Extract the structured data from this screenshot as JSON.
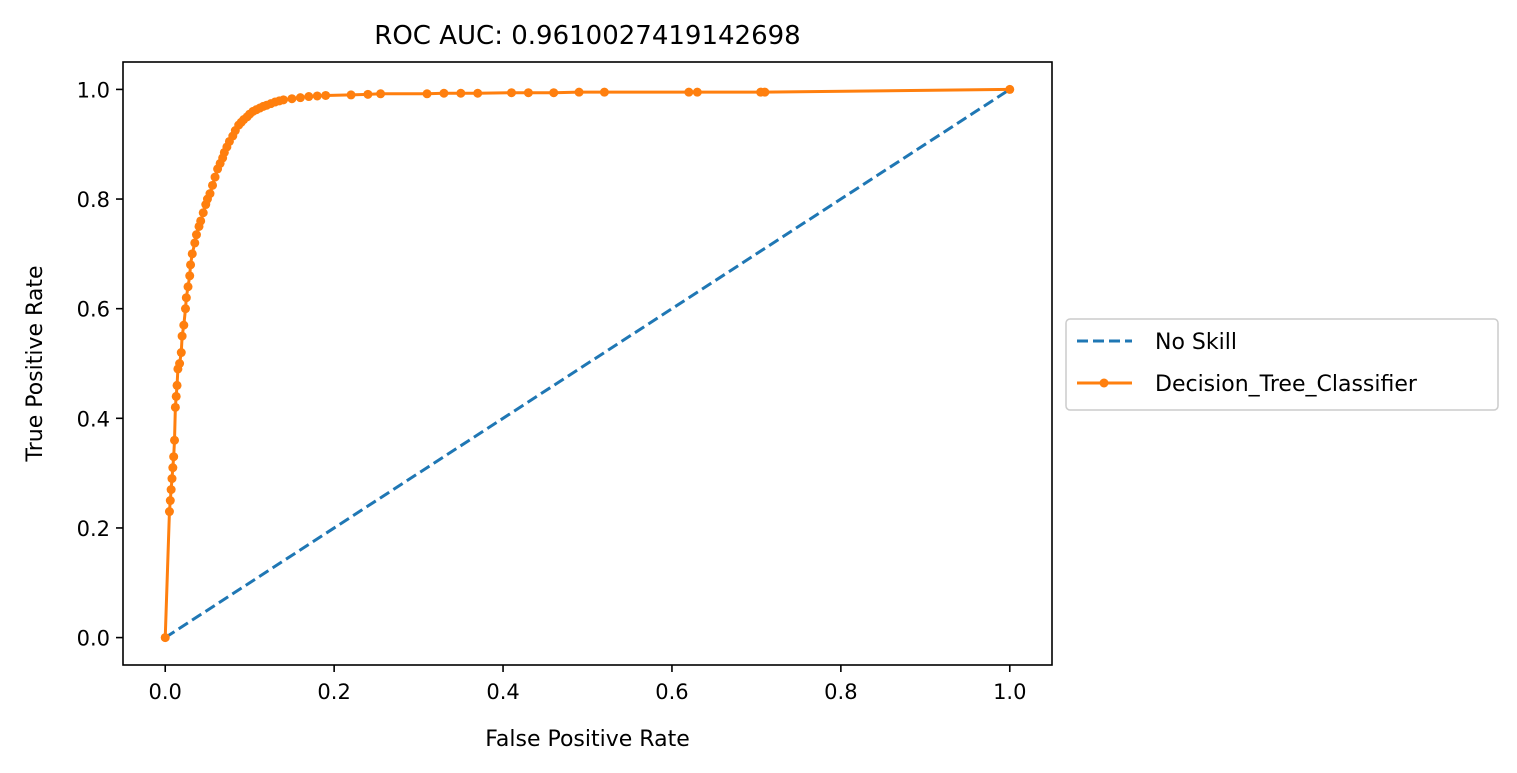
{
  "chart_data": {
    "type": "line",
    "title": "ROC AUC: 0.9610027419142698",
    "xlabel": "False Positive Rate",
    "ylabel": "True Positive Rate",
    "xlim": [
      -0.05,
      1.05
    ],
    "ylim": [
      -0.05,
      1.05
    ],
    "xticks": [
      "0.0",
      "0.2",
      "0.4",
      "0.6",
      "0.8",
      "1.0"
    ],
    "yticks": [
      "0.0",
      "0.2",
      "0.4",
      "0.6",
      "0.8",
      "1.0"
    ],
    "legend_position": "outside-right",
    "series": [
      {
        "name": "No Skill",
        "color": "#1f77b4",
        "style": "dashed",
        "x": [
          0,
          1
        ],
        "y": [
          0,
          1
        ]
      },
      {
        "name": "Decision_Tree_Classifier",
        "color": "#ff7f0e",
        "style": "solid-marker",
        "x": [
          0,
          0.005,
          0.006,
          0.007,
          0.008,
          0.009,
          0.01,
          0.011,
          0.012,
          0.013,
          0.014,
          0.015,
          0.017,
          0.019,
          0.02,
          0.022,
          0.024,
          0.025,
          0.027,
          0.029,
          0.03,
          0.032,
          0.035,
          0.037,
          0.04,
          0.042,
          0.045,
          0.048,
          0.05,
          0.053,
          0.056,
          0.059,
          0.062,
          0.065,
          0.068,
          0.07,
          0.073,
          0.076,
          0.08,
          0.083,
          0.087,
          0.09,
          0.093,
          0.097,
          0.1,
          0.104,
          0.108,
          0.112,
          0.116,
          0.12,
          0.125,
          0.13,
          0.135,
          0.14,
          0.15,
          0.16,
          0.17,
          0.18,
          0.19,
          0.22,
          0.24,
          0.255,
          0.31,
          0.33,
          0.35,
          0.37,
          0.41,
          0.43,
          0.46,
          0.49,
          0.52,
          0.62,
          0.63,
          0.705,
          0.71,
          1.0
        ],
        "y": [
          0,
          0.23,
          0.25,
          0.27,
          0.29,
          0.31,
          0.33,
          0.36,
          0.42,
          0.44,
          0.46,
          0.49,
          0.5,
          0.52,
          0.55,
          0.57,
          0.6,
          0.62,
          0.64,
          0.66,
          0.68,
          0.7,
          0.72,
          0.735,
          0.75,
          0.76,
          0.775,
          0.79,
          0.8,
          0.81,
          0.825,
          0.84,
          0.855,
          0.865,
          0.875,
          0.885,
          0.895,
          0.905,
          0.915,
          0.925,
          0.935,
          0.94,
          0.945,
          0.95,
          0.955,
          0.96,
          0.963,
          0.966,
          0.969,
          0.971,
          0.974,
          0.977,
          0.979,
          0.981,
          0.983,
          0.985,
          0.987,
          0.988,
          0.989,
          0.99,
          0.991,
          0.992,
          0.992,
          0.993,
          0.993,
          0.993,
          0.994,
          0.994,
          0.994,
          0.995,
          0.995,
          0.995,
          0.995,
          0.995,
          0.995,
          1.0
        ]
      }
    ]
  }
}
